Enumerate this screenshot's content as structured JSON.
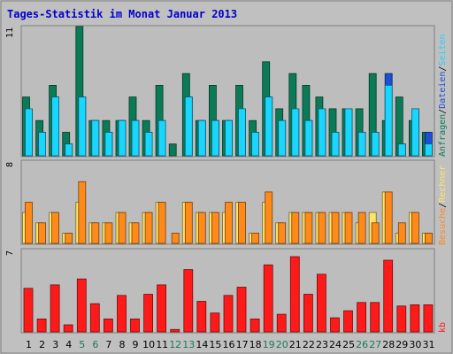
{
  "chart_data": {
    "type": "bar",
    "title": "Tages-Statistik im Monat Januar 2013",
    "categories": [
      "1",
      "2",
      "3",
      "4",
      "5",
      "6",
      "7",
      "8",
      "9",
      "10",
      "11",
      "12",
      "13",
      "14",
      "15",
      "16",
      "17",
      "18",
      "19",
      "20",
      "21",
      "22",
      "23",
      "24",
      "25",
      "26",
      "27",
      "28",
      "29",
      "30",
      "31"
    ],
    "weekend_days": [
      "5",
      "6",
      "12",
      "13",
      "19",
      "20",
      "26",
      "27"
    ],
    "panels": [
      {
        "id": "requests",
        "y_max_label": "11",
        "ylim": [
          0,
          11
        ],
        "series": [
          {
            "name": "Anfragen",
            "color": "#0b7a57",
            "values": [
              5,
              3,
              6,
              2,
              11,
              3,
              3,
              3,
              5,
              3,
              6,
              1,
              7,
              3,
              6,
              3,
              6,
              3,
              8,
              4,
              7,
              6,
              5,
              4,
              4,
              4,
              7,
              3,
              5,
              3,
              2
            ]
          },
          {
            "name": "Dateien",
            "color": "#1a4fd6",
            "values": [
              4,
              2,
              5,
              1,
              5,
              3,
              2,
              3,
              3,
              2,
              3,
              0,
              5,
              3,
              3,
              3,
              4,
              2,
              5,
              3,
              4,
              3,
              4,
              2,
              4,
              2,
              2,
              7,
              1,
              4,
              2
            ]
          },
          {
            "name": "Seiten",
            "color": "#19d6ff",
            "values": [
              4,
              2,
              5,
              1,
              5,
              3,
              2,
              3,
              3,
              2,
              3,
              0,
              5,
              3,
              3,
              3,
              4,
              2,
              5,
              3,
              4,
              3,
              4,
              2,
              4,
              2,
              2,
              6,
              1,
              4,
              1
            ]
          }
        ]
      },
      {
        "id": "visits",
        "y_max_label": "8",
        "ylim": [
          0,
          8
        ],
        "series": [
          {
            "name": "Besuche",
            "color": "#ffe566",
            "values": [
              3,
              2,
              3,
              1,
              4,
              2,
              2,
              3,
              2,
              3,
              4,
              0,
              4,
              3,
              3,
              3,
              4,
              1,
              4,
              2,
              3,
              3,
              3,
              3,
              3,
              2,
              3,
              5,
              1,
              3,
              1
            ]
          },
          {
            "name": "Rechner",
            "color": "#ff8a1a",
            "values": [
              4,
              2,
              3,
              1,
              6,
              2,
              2,
              3,
              2,
              3,
              4,
              1,
              4,
              3,
              3,
              4,
              4,
              1,
              5,
              2,
              3,
              3,
              3,
              3,
              3,
              3,
              2,
              5,
              2,
              3,
              1
            ]
          }
        ]
      },
      {
        "id": "kb",
        "y_max_label": "7",
        "ylim": [
          0,
          7
        ],
        "series": [
          {
            "name": "kb",
            "color": "#ff1a1a",
            "values": [
              3.7,
              1.1,
              4.0,
              0.6,
              4.5,
              2.4,
              1.1,
              3.1,
              1.1,
              3.2,
              4.0,
              0.2,
              5.3,
              2.6,
              1.6,
              3.1,
              3.8,
              1.1,
              5.7,
              1.5,
              6.4,
              3.2,
              4.9,
              1.2,
              1.8,
              2.5,
              2.5,
              6.1,
              2.2,
              2.3,
              2.3
            ]
          }
        ]
      }
    ],
    "right_labels": {
      "top_parts": [
        "Anfragen",
        "/",
        "Dateien",
        "/",
        "Seiten"
      ],
      "middle_parts": [
        "Besuche",
        "/",
        "Rechner"
      ],
      "bottom": "kb"
    }
  },
  "colors": {
    "background": "#c0c0c0",
    "plot_bg": "#bdbdbd",
    "border": "#808080",
    "title": "#0000cc",
    "weekday_label": "#000000",
    "weekend_label": "#197a5a"
  }
}
